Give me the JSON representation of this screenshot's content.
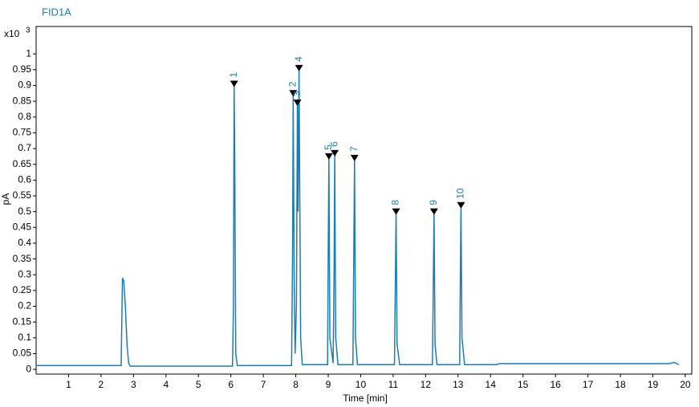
{
  "chart_data": {
    "type": "line",
    "title": "FID1A",
    "y_multiplier": "x10",
    "y_multiplier_exponent": "3",
    "ylabel": "pA",
    "xlabel": "Time [min]",
    "color": "#1b7db6",
    "xlim": [
      0,
      20.2
    ],
    "ylim": [
      -0.015,
      1.087
    ],
    "xticks": [
      1,
      2,
      3,
      4,
      5,
      6,
      7,
      8,
      9,
      10,
      11,
      12,
      13,
      14,
      15,
      16,
      17,
      18,
      19,
      20
    ],
    "yticks": [
      0,
      0.05,
      0.1,
      0.15,
      0.2,
      0.25,
      0.3,
      0.35,
      0.4,
      0.45,
      0.5,
      0.55,
      0.6,
      0.65,
      0.7,
      0.75,
      0.8,
      0.85,
      0.9,
      0.95,
      1
    ],
    "x": [
      0,
      2.62,
      2.66,
      2.7,
      2.75,
      2.8,
      2.85,
      2.9,
      6.05,
      6.08,
      6.1,
      6.12,
      6.15,
      6.2,
      7.87,
      7.9,
      7.92,
      7.95,
      7.98,
      8.02,
      8.05,
      8.07,
      8.1,
      8.12,
      8.15,
      8.2,
      8.98,
      9.0,
      9.02,
      9.05,
      9.15,
      9.18,
      9.2,
      9.23,
      9.3,
      9.76,
      9.79,
      9.81,
      9.84,
      9.9,
      11.04,
      11.07,
      11.09,
      11.12,
      11.2,
      12.21,
      12.24,
      12.26,
      12.29,
      12.35,
      13.05,
      13.07,
      13.09,
      13.12,
      13.2,
      14.2,
      14.25,
      19.5,
      19.65,
      19.8
    ],
    "values": [
      0.012,
      0.012,
      0.29,
      0.28,
      0.2,
      0.08,
      0.02,
      0.01,
      0.01,
      0.2,
      0.9,
      0.65,
      0.05,
      0.012,
      0.012,
      0.35,
      0.87,
      0.3,
      0.05,
      0.2,
      0.84,
      0.5,
      0.95,
      0.6,
      0.1,
      0.015,
      0.015,
      0.38,
      0.67,
      0.1,
      0.02,
      0.3,
      0.68,
      0.1,
      0.015,
      0.015,
      0.4,
      0.665,
      0.1,
      0.015,
      0.015,
      0.3,
      0.495,
      0.08,
      0.015,
      0.015,
      0.3,
      0.495,
      0.08,
      0.015,
      0.015,
      0.3,
      0.515,
      0.1,
      0.015,
      0.015,
      0.018,
      0.018,
      0.022,
      0.015
    ],
    "peak_labels": [
      "1",
      "2",
      "3",
      "4",
      "5",
      "6",
      "7",
      "8",
      "9",
      "10"
    ],
    "peak_x": [
      6.1,
      7.92,
      8.05,
      8.1,
      9.02,
      9.2,
      9.81,
      11.09,
      12.26,
      13.09
    ],
    "peak_y": [
      0.9,
      0.87,
      0.84,
      0.95,
      0.67,
      0.68,
      0.665,
      0.495,
      0.495,
      0.515
    ]
  }
}
